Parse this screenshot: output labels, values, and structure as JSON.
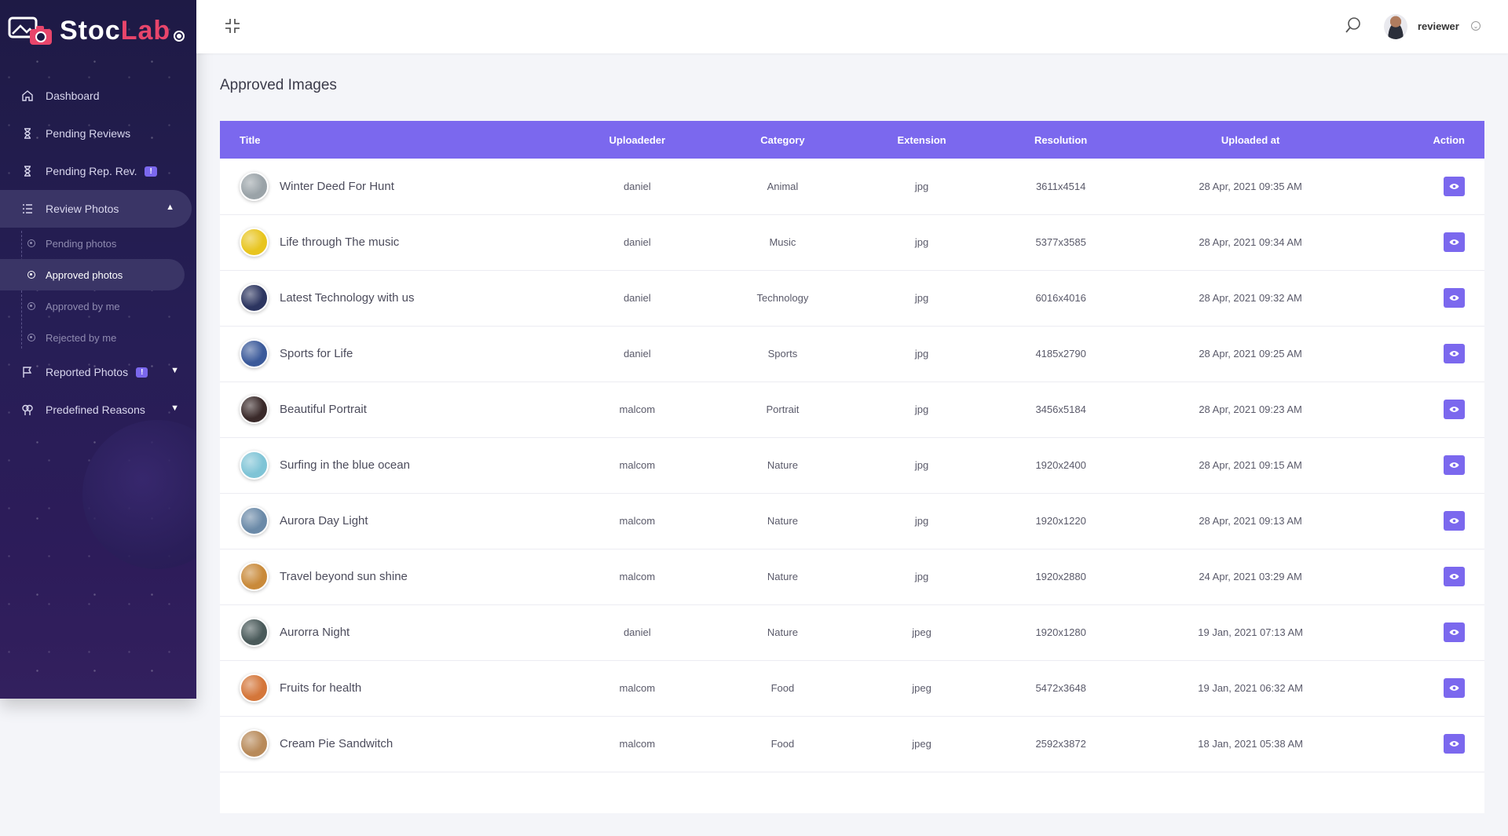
{
  "brand": {
    "part1": "Stoc",
    "part2": "Lab"
  },
  "sidebar": {
    "items": [
      {
        "label": "Dashboard",
        "icon": "home-icon"
      },
      {
        "label": "Pending Reviews",
        "icon": "hourglass-icon"
      },
      {
        "label": "Pending Rep. Rev.",
        "icon": "hourglass-icon",
        "badge": "!"
      },
      {
        "label": "Review Photos",
        "icon": "list-icon"
      },
      {
        "label": "Reported Photos",
        "icon": "flag-icon",
        "badge": "!"
      },
      {
        "label": "Predefined Reasons",
        "icon": "reasons-icon"
      }
    ],
    "sub": [
      {
        "label": "Pending photos"
      },
      {
        "label": "Approved photos"
      },
      {
        "label": "Approved by me"
      },
      {
        "label": "Rejected by me"
      }
    ]
  },
  "header": {
    "user": "reviewer"
  },
  "page": {
    "title": "Approved Images"
  },
  "table": {
    "columns": [
      "Title",
      "Uploadeder",
      "Category",
      "Extension",
      "Resolution",
      "Uploaded at",
      "Action"
    ],
    "rows": [
      {
        "title": "Winter Deed For Hunt",
        "uploader": "daniel",
        "category": "Animal",
        "extension": "jpg",
        "resolution": "3611x4514",
        "uploaded": "28 Apr, 2021 09:35 AM",
        "thumb": "#9aa3a8"
      },
      {
        "title": "Life through The music",
        "uploader": "daniel",
        "category": "Music",
        "extension": "jpg",
        "resolution": "5377x3585",
        "uploaded": "28 Apr, 2021 09:34 AM",
        "thumb": "#e8c51f"
      },
      {
        "title": "Latest Technology with us",
        "uploader": "daniel",
        "category": "Technology",
        "extension": "jpg",
        "resolution": "6016x4016",
        "uploaded": "28 Apr, 2021 09:32 AM",
        "thumb": "#2c3560"
      },
      {
        "title": "Sports for Life",
        "uploader": "daniel",
        "category": "Sports",
        "extension": "jpg",
        "resolution": "4185x2790",
        "uploaded": "28 Apr, 2021 09:25 AM",
        "thumb": "#3b5a9a"
      },
      {
        "title": "Beautiful Portrait",
        "uploader": "malcom",
        "category": "Portrait",
        "extension": "jpg",
        "resolution": "3456x5184",
        "uploaded": "28 Apr, 2021 09:23 AM",
        "thumb": "#3a2a2a"
      },
      {
        "title": "Surfing in the blue ocean",
        "uploader": "malcom",
        "category": "Nature",
        "extension": "jpg",
        "resolution": "1920x2400",
        "uploaded": "28 Apr, 2021 09:15 AM",
        "thumb": "#7fc4d6"
      },
      {
        "title": "Aurora Day Light",
        "uploader": "malcom",
        "category": "Nature",
        "extension": "jpg",
        "resolution": "1920x1220",
        "uploaded": "28 Apr, 2021 09:13 AM",
        "thumb": "#6b8aa8"
      },
      {
        "title": "Travel beyond sun shine",
        "uploader": "malcom",
        "category": "Nature",
        "extension": "jpg",
        "resolution": "1920x2880",
        "uploaded": "24 Apr, 2021 03:29 AM",
        "thumb": "#c98a3a"
      },
      {
        "title": "Aurorra Night",
        "uploader": "daniel",
        "category": "Nature",
        "extension": "jpeg",
        "resolution": "1920x1280",
        "uploaded": "19 Jan, 2021 07:13 AM",
        "thumb": "#4a5a5a"
      },
      {
        "title": "Fruits for health",
        "uploader": "malcom",
        "category": "Food",
        "extension": "jpeg",
        "resolution": "5472x3648",
        "uploaded": "19 Jan, 2021 06:32 AM",
        "thumb": "#d4763a"
      },
      {
        "title": "Cream Pie Sandwitch",
        "uploader": "malcom",
        "category": "Food",
        "extension": "jpeg",
        "resolution": "2592x3872",
        "uploaded": "18 Jan, 2021 05:38 AM",
        "thumb": "#b88a5a"
      }
    ]
  },
  "colors": {
    "accent": "#7b68ee",
    "brand_red": "#e8456b",
    "sidebar_bg": "#1e1a45"
  }
}
